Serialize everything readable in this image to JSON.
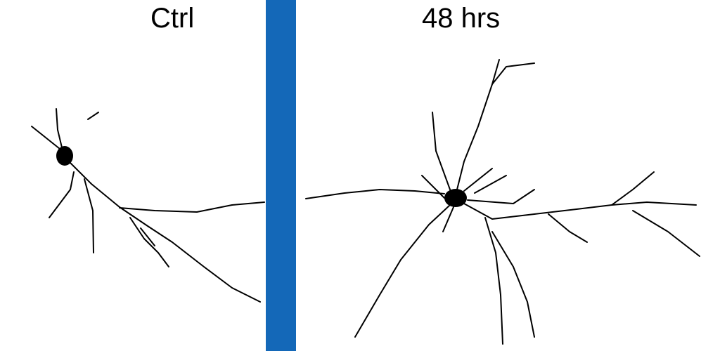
{
  "panels": [
    {
      "label": "Ctrl"
    },
    {
      "label": "48 hrs"
    }
  ],
  "divider_color": "#1468b8"
}
